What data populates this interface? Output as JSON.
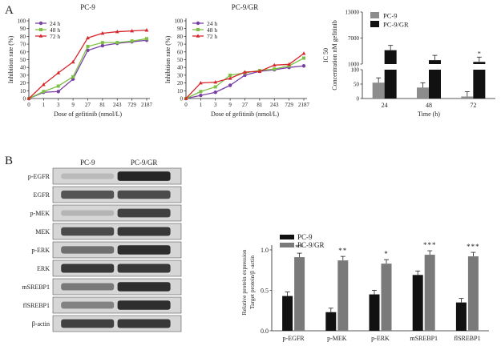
{
  "panel_labels": [
    "A",
    "B"
  ],
  "chart_data": [
    {
      "id": "pc9_line",
      "type": "line",
      "title": "PC-9",
      "xlabel": "Dose of gefitinib (nmol/L)",
      "ylabel": "Inhibition rate (%)",
      "categories": [
        "0",
        "1",
        "3",
        "9",
        "27",
        "81",
        "243",
        "729",
        "2187"
      ],
      "ylim": [
        0,
        100
      ],
      "yticks": [
        "0",
        "10",
        "20",
        "30",
        "40",
        "50",
        "60",
        "70",
        "80",
        "90",
        "100"
      ],
      "legend_position": "top-left",
      "series": [
        {
          "name": "24 h",
          "color": "#7a3fa6",
          "marker": "circle",
          "values": [
            0,
            8,
            9,
            25,
            62,
            68,
            71,
            73,
            75
          ]
        },
        {
          "name": "48 h",
          "color": "#7cc143",
          "marker": "square",
          "values": [
            0,
            9,
            16,
            28,
            67,
            72,
            72,
            74,
            77
          ]
        },
        {
          "name": "72 h",
          "color": "#d6262b",
          "marker": "triangle",
          "values": [
            0,
            18,
            33,
            47,
            78,
            84,
            86,
            87,
            88
          ]
        }
      ]
    },
    {
      "id": "pc9gr_line",
      "type": "line",
      "title": "PC-9/GR",
      "xlabel": "Dose of gefitinib (nmol/L)",
      "ylabel": "Inhibition rate (%)",
      "categories": [
        "0",
        "1",
        "3",
        "9",
        "27",
        "81",
        "243",
        "729",
        "2187"
      ],
      "ylim": [
        0,
        100
      ],
      "yticks": [
        "0",
        "10",
        "20",
        "30",
        "40",
        "50",
        "60",
        "70",
        "80",
        "90",
        "100"
      ],
      "legend_position": "top-left",
      "series": [
        {
          "name": "24 h",
          "color": "#7a3fa6",
          "marker": "circle",
          "values": [
            0,
            4,
            8,
            17,
            30,
            35,
            37,
            40,
            42
          ]
        },
        {
          "name": "48 h",
          "color": "#7cc143",
          "marker": "square",
          "values": [
            0,
            9,
            15,
            30,
            33,
            36,
            38,
            42,
            52
          ]
        },
        {
          "name": "72 h",
          "color": "#d6262b",
          "marker": "triangle",
          "values": [
            0,
            20,
            21,
            26,
            34,
            35,
            43,
            44,
            58
          ]
        }
      ]
    },
    {
      "id": "ic50_bar",
      "type": "bar",
      "xlabel": "Time (h)",
      "ylabel_lines": [
        "Concentration nM gefitinib",
        "IC 50"
      ],
      "categories": [
        "24",
        "48",
        "72"
      ],
      "broken_axis": true,
      "yticks_lower": [
        "0",
        "50",
        "100"
      ],
      "yticks_upper": [
        "1000",
        "7000",
        "13000"
      ],
      "legend_position": "top-left",
      "series": [
        {
          "name": "PC-9",
          "color": "#8c8c8c",
          "values": [
            55,
            38,
            7
          ]
        },
        {
          "name": "PC-9/GR",
          "color": "#111111",
          "values": [
            4200,
            1900,
            1500
          ]
        }
      ],
      "annotations": [
        {
          "category": "72",
          "series": "PC-9/GR",
          "text": "*"
        }
      ]
    },
    {
      "id": "protein_bar",
      "type": "bar",
      "ylabel_lines": [
        "Relative protein expression",
        "Target protein/β -actin"
      ],
      "categories": [
        "p-EGFR",
        "p-MEK",
        "p-ERK",
        "mSREBP1",
        "flSREBP1"
      ],
      "ylim": [
        0,
        1.0
      ],
      "yticks": [
        "0.0",
        "0.5",
        "1.0"
      ],
      "legend_position": "top-left",
      "series": [
        {
          "name": "PC-9",
          "color": "#111111",
          "values": [
            0.43,
            0.23,
            0.45,
            0.69,
            0.35
          ]
        },
        {
          "name": "PC-9/GR",
          "color": "#7a7a7a",
          "values": [
            0.91,
            0.87,
            0.83,
            0.94,
            0.92
          ]
        }
      ],
      "annotations": [
        "**",
        "**",
        "*",
        "***",
        "***"
      ]
    }
  ],
  "western_blot": {
    "columns": [
      "PC-9",
      "PC-9/GR"
    ],
    "rows": [
      "p-EGFR",
      "EGFR",
      "p-MEK",
      "MEK",
      "p-ERK",
      "ERK",
      "mSREBP1",
      "flSREBP1",
      "β-actin"
    ]
  }
}
